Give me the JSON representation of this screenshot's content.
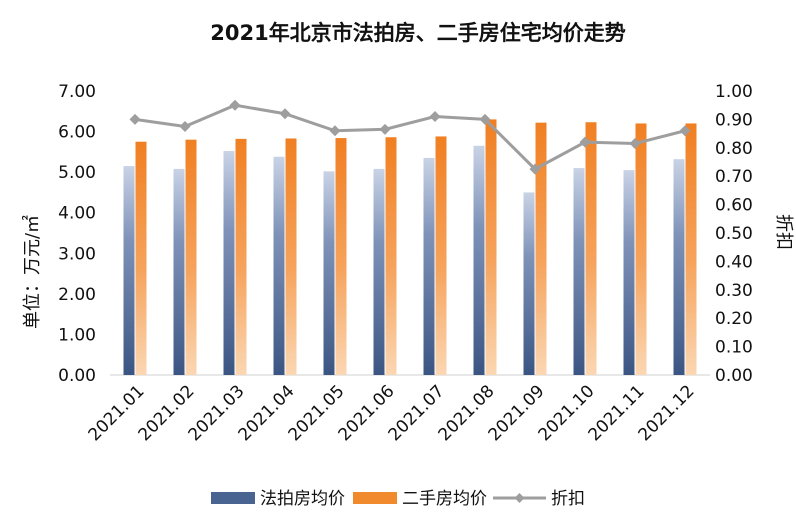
{
  "chart_data": {
    "title": "2021年北京市法拍房、二手房住宅均价走势",
    "ylabel_left": "单位：万元/㎡",
    "ylabel_right": "折扣",
    "categories": [
      "2021.01",
      "2021.02",
      "2021.03",
      "2021.04",
      "2021.05",
      "2021.06",
      "2021.07",
      "2021.08",
      "2021.09",
      "2021.10",
      "2021.11",
      "2021.12"
    ],
    "y_left_ticks": [
      "0.00",
      "1.00",
      "2.00",
      "3.00",
      "4.00",
      "5.00",
      "6.00",
      "7.00"
    ],
    "y_right_ticks": [
      "0.00",
      "0.10",
      "0.20",
      "0.30",
      "0.40",
      "0.50",
      "0.60",
      "0.70",
      "0.80",
      "0.90",
      "1.00"
    ],
    "ylim_left": [
      0,
      7
    ],
    "ylim_right": [
      0,
      1
    ],
    "series": [
      {
        "name": "法拍房均价",
        "type": "bar",
        "axis": "left",
        "color": "#4a6491",
        "values": [
          5.15,
          5.08,
          5.52,
          5.38,
          5.02,
          5.08,
          5.35,
          5.65,
          4.5,
          5.1,
          5.05,
          5.32
        ]
      },
      {
        "name": "二手房均价",
        "type": "bar",
        "axis": "left",
        "color": "#f08a2c",
        "values": [
          5.75,
          5.8,
          5.82,
          5.83,
          5.84,
          5.86,
          5.88,
          6.3,
          6.22,
          6.23,
          6.2,
          6.2
        ]
      },
      {
        "name": "折扣",
        "type": "line",
        "axis": "right",
        "color": "#9e9e9e",
        "values": [
          0.9,
          0.875,
          0.95,
          0.92,
          0.86,
          0.865,
          0.91,
          0.9,
          0.725,
          0.82,
          0.815,
          0.86
        ]
      }
    ],
    "grid": false,
    "legend_position": "bottom"
  }
}
